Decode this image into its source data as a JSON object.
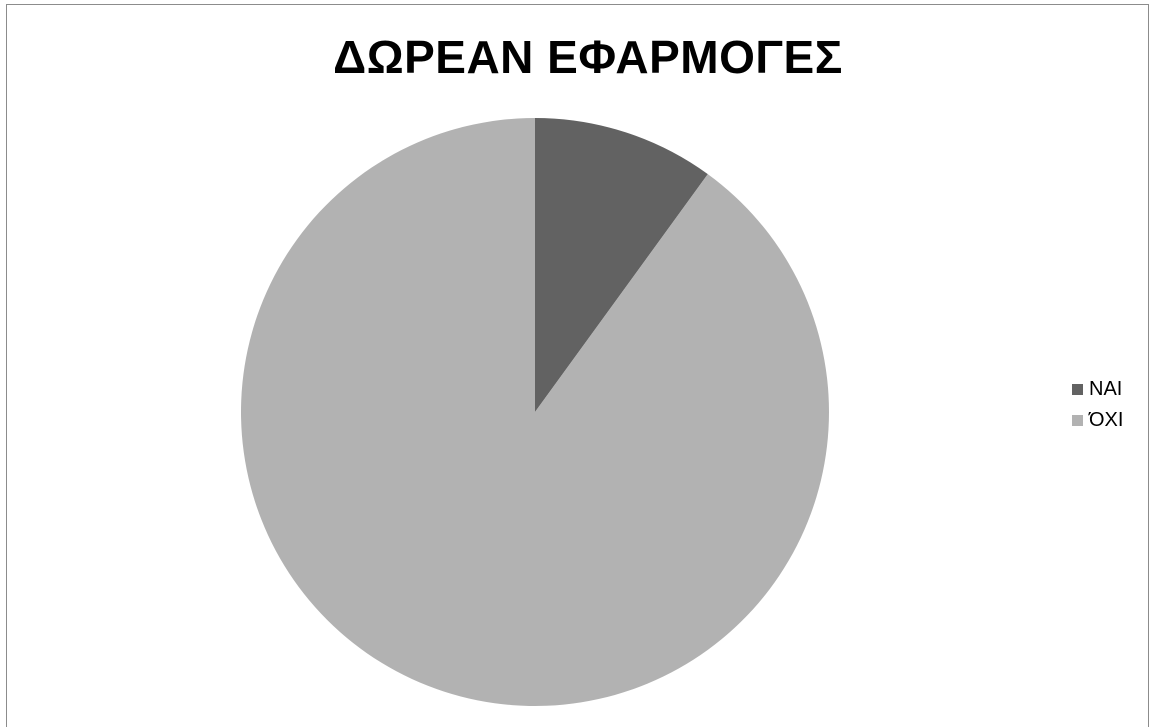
{
  "chart_data": {
    "type": "pie",
    "title": "ΔΩΡΕΑΝ ΕΦΑΡΜΟΓΕΣ",
    "categories": [
      "ΝΑΙ",
      "ΌΧΙ"
    ],
    "values": [
      10,
      90
    ],
    "colors": [
      "#626262",
      "#b2b2b2"
    ],
    "start_angle": "12 o'clock, clockwise",
    "legend": "right",
    "legend_entries": [
      {
        "label": "ΝΑΙ",
        "color": "#626262"
      },
      {
        "label": "ΌΧΙ",
        "color": "#b2b2b2"
      }
    ]
  }
}
